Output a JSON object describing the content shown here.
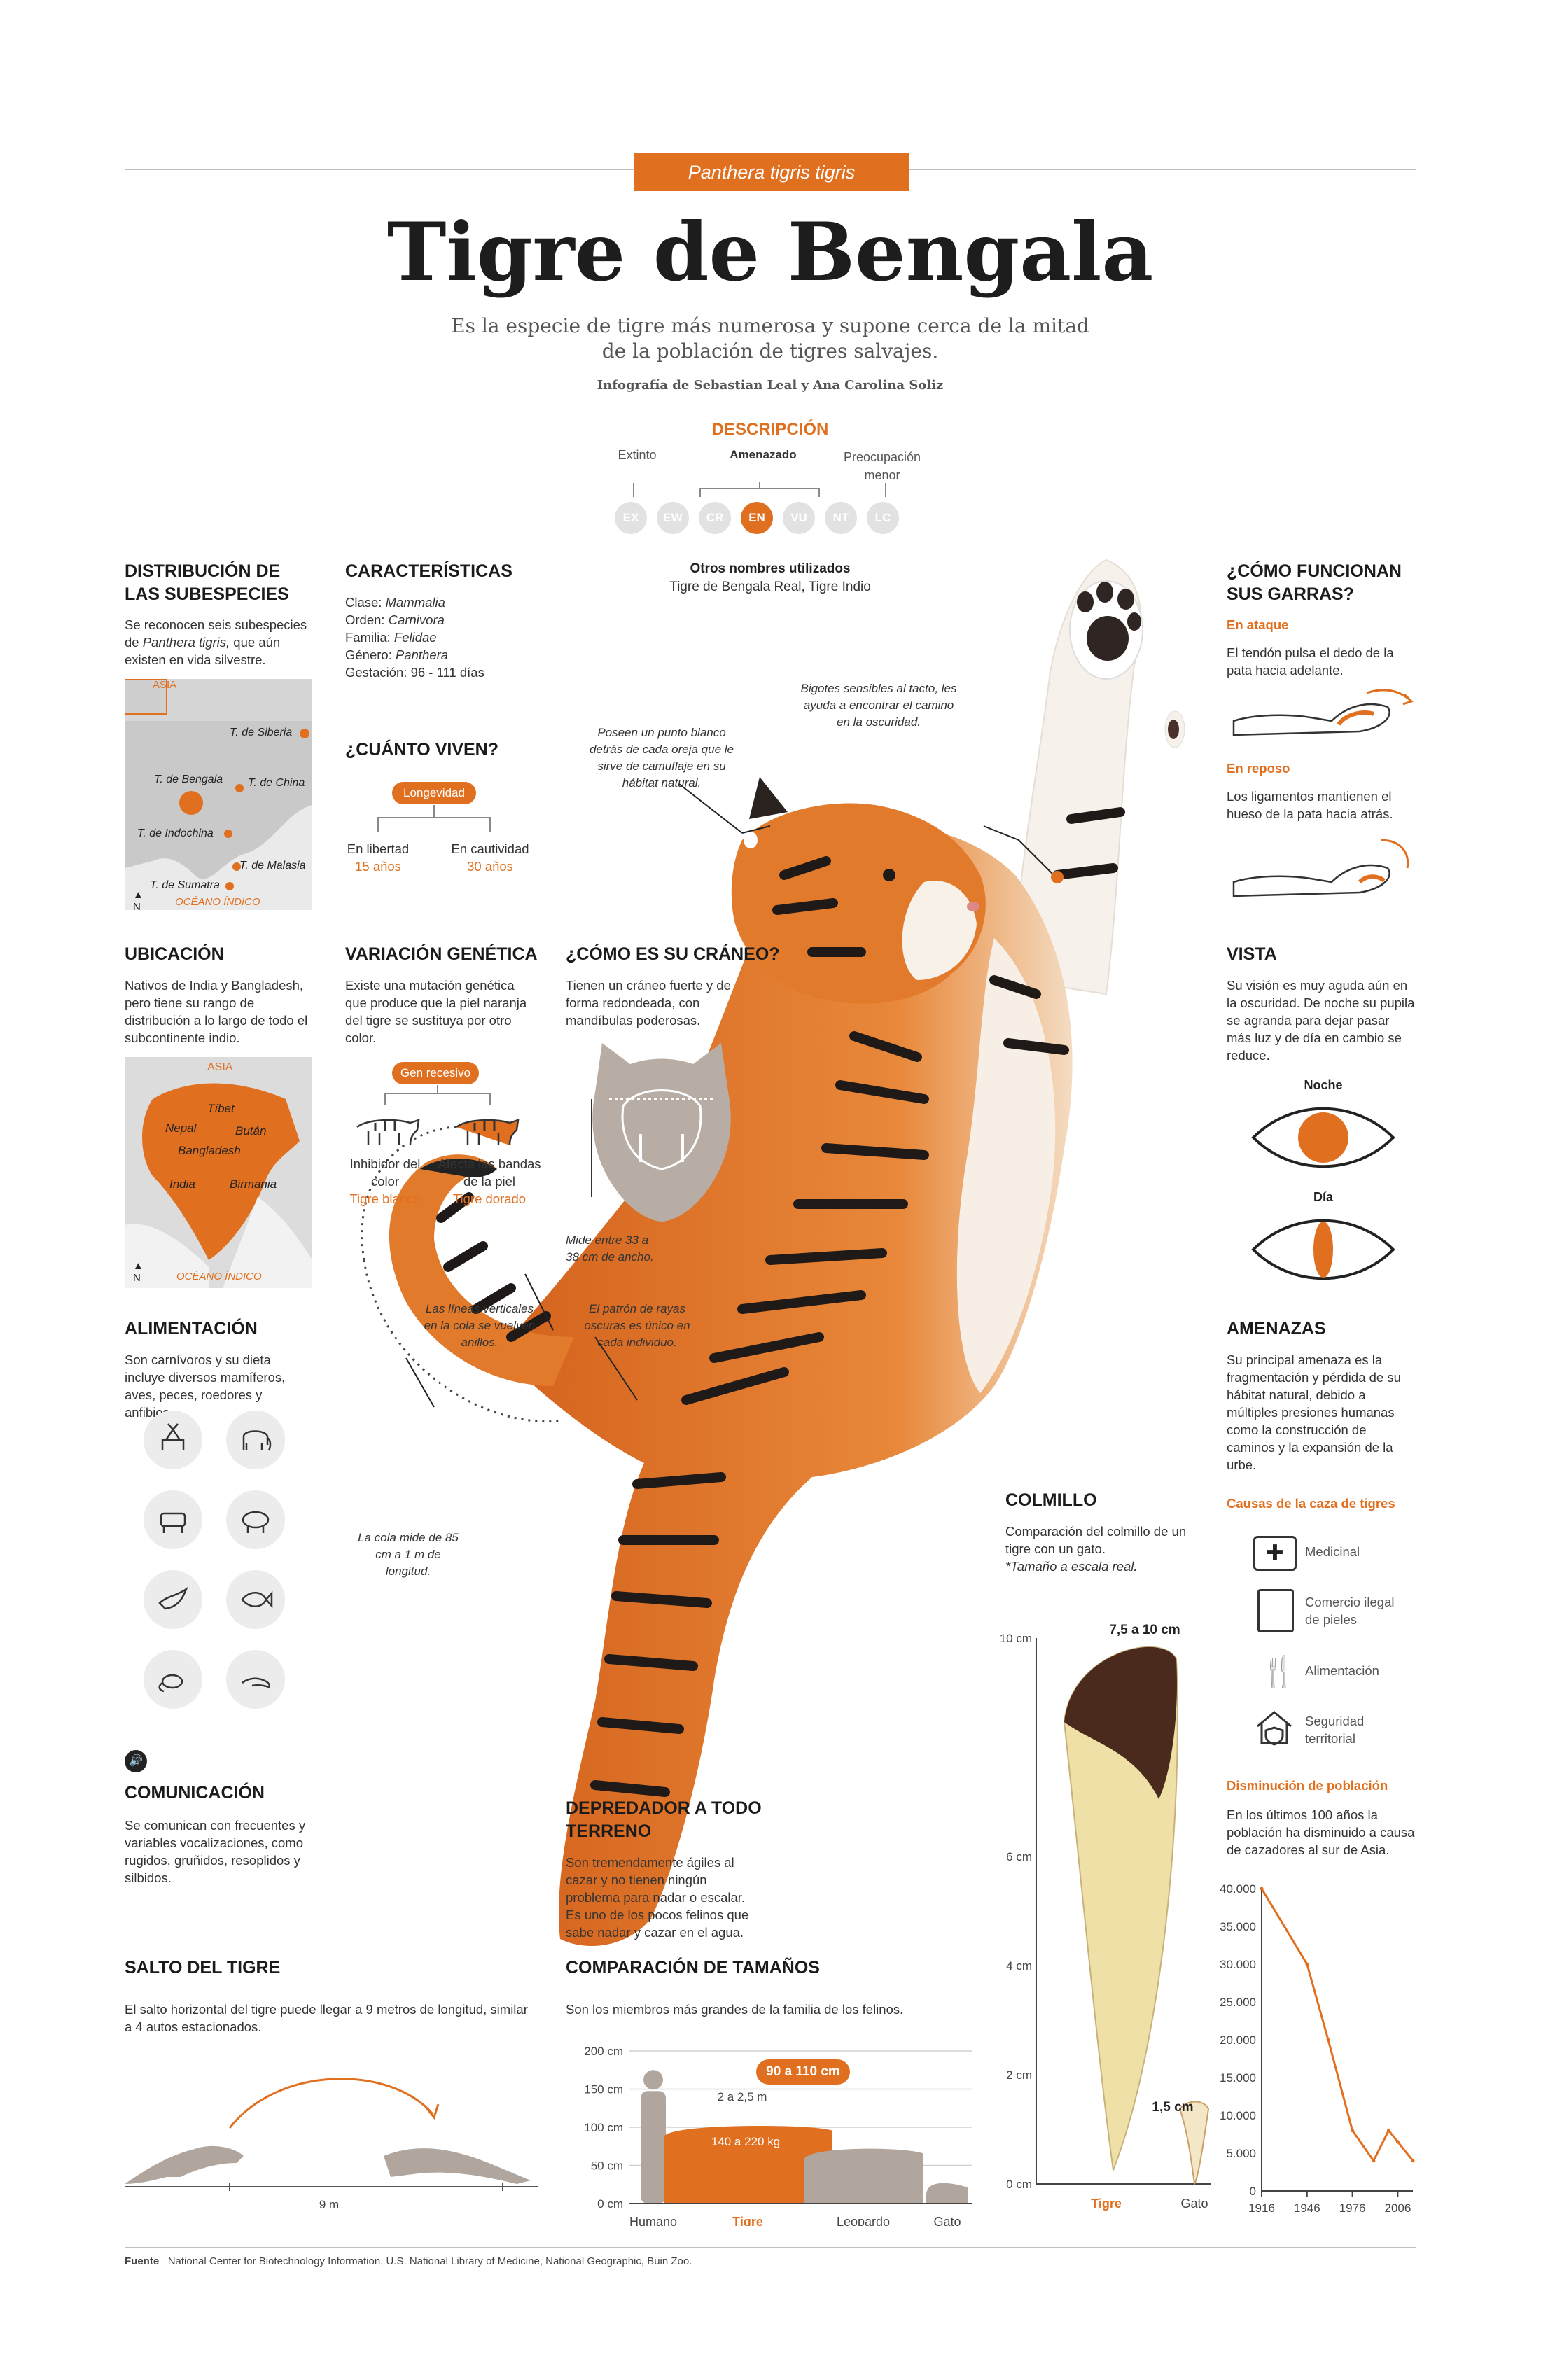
{
  "header": {
    "tag": "Panthera tigris tigris",
    "title": "Tigre de Bengala",
    "subtitle": "Es la especie de tigre más numerosa y supone cerca de la mitad de la población de tigres salvajes.",
    "credit": "Infografía  de Sebastian Leal y Ana Carolina Soliz"
  },
  "status": {
    "title": "DESCRIPCIÓN",
    "label_left": "Extinto",
    "label_mid": "Amenazado",
    "label_right": "Preocupación menor",
    "codes": [
      "EX",
      "EW",
      "CR",
      "EN",
      "VU",
      "NT",
      "LC"
    ],
    "active": "EN",
    "active_color": "#e07020"
  },
  "other_names": {
    "title": "Otros nombres utilizados",
    "text": "Tigre de Bengala Real, Tigre Indio"
  },
  "distribution": {
    "title": "DISTRIBUCIÓN DE LAS SUBESPECIES",
    "text_a": "Se reconocen seis subespecies de ",
    "text_em": "Panthera tigris,",
    "text_b": " que aún existen en vida silvestre.",
    "map_region": "ASIA",
    "ocean": "OCÉANO ÍNDICO",
    "north": "N",
    "labels": [
      "T. de Siberia",
      "T. de Bengala",
      "T. de China",
      "T. de Indochina",
      "T. de Malasia",
      "T. de Sumatra"
    ]
  },
  "characteristics": {
    "title": "CARACTERÍSTICAS",
    "rows": [
      {
        "k": "Clase:",
        "v": "Mammalia"
      },
      {
        "k": "Orden:",
        "v": "Carnivora"
      },
      {
        "k": "Familia:",
        "v": "Felidae"
      },
      {
        "k": "Género:",
        "v": "Panthera"
      },
      {
        "k": "Gestación:",
        "v": "96 - 111 días"
      }
    ]
  },
  "lifespan": {
    "title": "¿CUÁNTO VIVEN?",
    "pill": "Longevidad",
    "wild_label": "En libertad",
    "wild_value": "15 años",
    "captive_label": "En cautividad",
    "captive_value": "30 años"
  },
  "location": {
    "title": "UBICACIÓN",
    "text": "Nativos de India y Bangladesh, pero tiene su rango de distribución a lo largo de todo el subcontinente indio.",
    "map_region": "ASIA",
    "labels": [
      "Tíbet",
      "Nepal",
      "Bután",
      "Bangladesh",
      "India",
      "Birmania"
    ],
    "ocean": "OCÉANO ÍNDICO",
    "north": "N"
  },
  "genetics": {
    "title": "VARIACIÓN GENÉTICA",
    "text": "Existe una mutación genética que produce que la piel naranja del tigre se sustituya por otro color.",
    "pill": "Gen recesivo",
    "left_label": "Inhibidor del color",
    "left_value": "Tigre blanco",
    "right_label": "Afecta las bandas de la piel",
    "right_value": "Tigre dorado"
  },
  "skull": {
    "title": "¿CÓMO ES SU CRÁNEO?",
    "text": "Tienen un cráneo fuerte y de forma redondeada, con mandíbulas poderosas.",
    "note": "Mide entre 33 a 38 cm de ancho."
  },
  "feeding": {
    "title": "ALIMENTACIÓN",
    "text": "Son carnívoros y su dieta incluye diversos mamíferos, aves, peces, roedores y anfibios.",
    "icons": [
      "deer-icon",
      "elephant-icon",
      "cow-icon",
      "boar-icon",
      "bird-icon",
      "fish-icon",
      "rodent-icon",
      "lizard-icon"
    ]
  },
  "communication": {
    "title": "COMUNICACIÓN",
    "text": "Se comunican con frecuentes y variables vocalizaciones, como rugidos, gruñidos, resoplidos y silbidos."
  },
  "jump": {
    "title": "SALTO DEL TIGRE",
    "text": "El salto horizontal del tigre puede llegar a 9 metros de longitud, similar a 4 autos estacionados.",
    "distance": "9 m"
  },
  "predator": {
    "title": "DEPREDADOR A TODO TERRENO",
    "text": "Son tremendamente ágiles al cazar y no tienen ningún problema para nadar o escalar. Es uno de los pocos felinos que sabe nadar y cazar en el agua."
  },
  "annotations": {
    "ear": "Poseen un punto blanco detrás de cada oreja que le sirve de camuflaje en su hábitat natural.",
    "whiskers": "Bigotes sensibles al tacto, les ayuda a encontrar el camino en la oscuridad.",
    "tail_lines": "Las líneas verticales en la cola se vuelven anillos.",
    "stripes": "El patrón de rayas oscuras es único en cada individuo.",
    "tail_length": "La cola mide de 85 cm a 1 m de longitud."
  },
  "claws": {
    "title": "¿CÓMO FUNCIONAN SUS GARRAS?",
    "attack_title": "En ataque",
    "attack_text": "El tendón pulsa el dedo de la pata hacia adelante.",
    "rest_title": "En reposo",
    "rest_text": "Los ligamentos mantienen el hueso de la pata hacia atrás."
  },
  "vision": {
    "title": "VISTA",
    "text": "Su visión es muy aguda aún en la oscuridad. De noche su pupila se agranda para dejar pasar más luz y de día en cambio se reduce.",
    "night": "Noche",
    "day": "Día"
  },
  "threats": {
    "title": "AMENAZAS",
    "text": "Su principal amenaza es la fragmentación y pérdida de su hábitat natural, debido a múltiples presiones humanas como la construcción de caminos y la expansión de la urbe.",
    "causes_title": "Causas de la caza de tigres",
    "causes": [
      "Medicinal",
      "Comercio ilegal de pieles",
      "Alimentación",
      "Seguridad territorial"
    ]
  },
  "fang": {
    "title": "COLMILLO",
    "text": "Comparación del colmillo de un tigre con un gato.",
    "note": "*Tamaño a escala real.",
    "tiger_size": "7,5 a 10 cm",
    "cat_size": "1,5 cm",
    "tiger_label": "Tigre",
    "cat_label": "Gato"
  },
  "sizes": {
    "title": "COMPARACIÓN DE TAMAÑOS",
    "text": "Son los miembros más grandes de la familia de los felinos.",
    "length": "90 a 110 cm",
    "span": "2 a 2,5 m",
    "weight": "140 a 220 kg"
  },
  "population": {
    "title": "Disminución de población",
    "text": "En los últimos 100 años la población ha disminuido a causa de cazadores al sur de Asia."
  },
  "source": {
    "label": "Fuente",
    "text": "National Center for Biotechnology Information, U.S. National Library of Medicine, National Geographic, Buin Zoo."
  },
  "chart_data": [
    {
      "type": "line",
      "title": "Disminución de población",
      "x": [
        1916,
        1946,
        1960,
        1976,
        1990,
        2000,
        2006,
        2016
      ],
      "x_tick_labels": [
        "1916",
        "1946",
        "1976",
        "2006"
      ],
      "y_tick_labels": [
        "0",
        "5.000",
        "10.000",
        "15.000",
        "20.000",
        "25.000",
        "30.000",
        "35.000",
        "40.000"
      ],
      "ylim": [
        0,
        40000
      ],
      "series": [
        {
          "values": [
            40000,
            30000,
            20000,
            8000,
            4000,
            8000,
            6500,
            4000
          ]
        }
      ],
      "color": "#e07020"
    },
    {
      "type": "bar",
      "title": "COMPARACIÓN DE TAMAÑOS",
      "categories": [
        "Humano",
        "Tigre",
        "Leopardo",
        "Gato"
      ],
      "values_cm": [
        175,
        105,
        75,
        30
      ],
      "highlight": "Tigre",
      "y_tick_labels": [
        "0 cm",
        "50 cm",
        "100 cm",
        "150 cm",
        "200 cm"
      ],
      "ylim": [
        0,
        200
      ]
    },
    {
      "type": "bar",
      "title": "COLMILLO",
      "categories": [
        "Tigre",
        "Gato"
      ],
      "values_cm": [
        10,
        1.5
      ],
      "y_tick_labels": [
        "0 cm",
        "2 cm",
        "4 cm",
        "6 cm",
        "10 cm"
      ],
      "ylim": [
        0,
        10
      ]
    }
  ]
}
